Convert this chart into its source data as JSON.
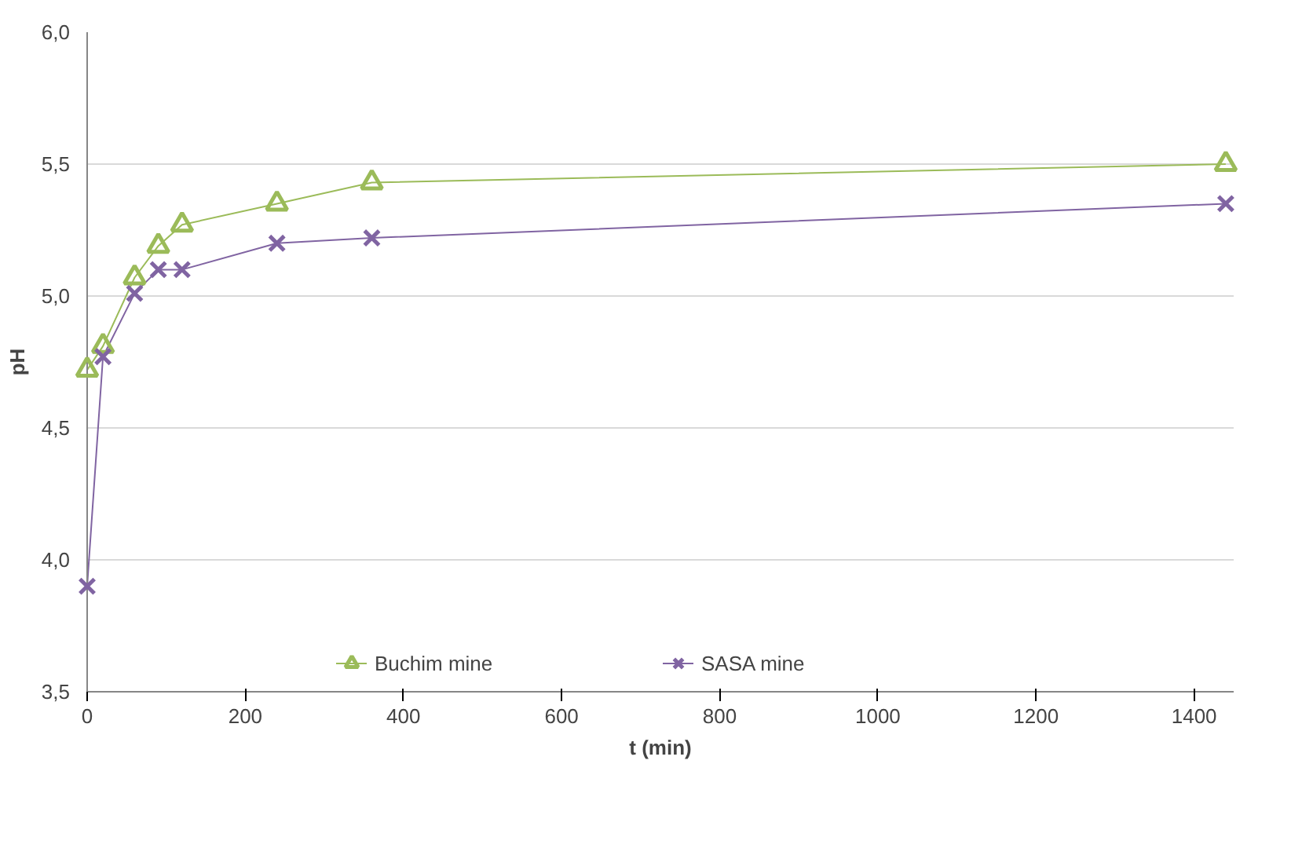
{
  "chart_data": {
    "type": "line",
    "xlabel": "t (min)",
    "ylabel": "pH",
    "xlim": [
      0,
      1450
    ],
    "xticks": [
      0,
      200,
      400,
      600,
      800,
      1000,
      1200,
      1400
    ],
    "ylim": [
      3.5,
      6.0
    ],
    "yticks": [
      {
        "value": 3.5,
        "label": "3,5"
      },
      {
        "value": 4.0,
        "label": "4,0"
      },
      {
        "value": 4.5,
        "label": "4,5"
      },
      {
        "value": 5.0,
        "label": "5,0"
      },
      {
        "value": 5.5,
        "label": "5,5"
      },
      {
        "value": 6.0,
        "label": "6,0"
      }
    ],
    "grid": "y",
    "legend": "bottom",
    "series": [
      {
        "name": "Buchim mine",
        "color": "#9bbb59",
        "marker": "triangle",
        "x": [
          0,
          20,
          60,
          90,
          120,
          240,
          360,
          1440
        ],
        "values": [
          4.72,
          4.81,
          5.07,
          5.19,
          5.27,
          5.35,
          5.43,
          5.5
        ]
      },
      {
        "name": "SASA mine",
        "color": "#8064a2",
        "marker": "cross",
        "x": [
          0,
          20,
          60,
          90,
          120,
          240,
          360,
          1440
        ],
        "values": [
          3.9,
          4.77,
          5.01,
          5.1,
          5.1,
          5.2,
          5.22,
          5.35
        ]
      }
    ]
  }
}
